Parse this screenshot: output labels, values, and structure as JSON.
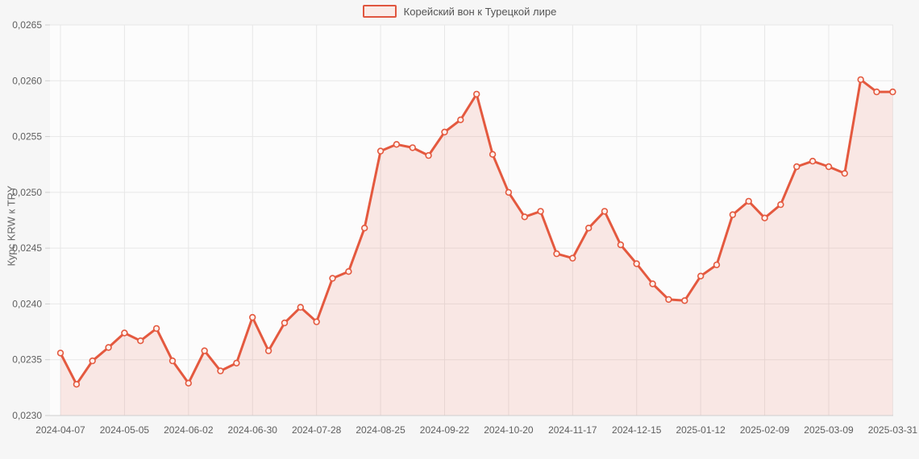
{
  "chart_data": {
    "type": "area",
    "title": "",
    "legend": {
      "position": "top-center",
      "label": "Корейский вон к Турецкой лире"
    },
    "ylabel": "Курс KRW к TRY",
    "xlabel": "",
    "grid": true,
    "ylim": [
      0.023,
      0.0265
    ],
    "ytick_step": 0.0005,
    "ytick_labels": [
      "0,0230",
      "0,0235",
      "0,0240",
      "0,0245",
      "0,0250",
      "0,0255",
      "0,0260",
      "0,0265"
    ],
    "xtick_indices": [
      0,
      4,
      8,
      12,
      16,
      20,
      24,
      28,
      32,
      36,
      40,
      44,
      48,
      52
    ],
    "xtick_labels": [
      "2024-04-07",
      "2024-05-05",
      "2024-06-02",
      "2024-06-30",
      "2024-07-28",
      "2024-08-25",
      "2024-09-22",
      "2024-10-20",
      "2024-11-17",
      "2024-12-15",
      "2025-01-12",
      "2025-02-09",
      "2025-03-09",
      "2025-03-31"
    ],
    "x": [
      "2024-04-07",
      "2024-04-14",
      "2024-04-21",
      "2024-04-28",
      "2024-05-05",
      "2024-05-12",
      "2024-05-19",
      "2024-05-26",
      "2024-06-02",
      "2024-06-09",
      "2024-06-16",
      "2024-06-23",
      "2024-06-30",
      "2024-07-07",
      "2024-07-14",
      "2024-07-21",
      "2024-07-28",
      "2024-08-04",
      "2024-08-11",
      "2024-08-18",
      "2024-08-25",
      "2024-09-01",
      "2024-09-08",
      "2024-09-15",
      "2024-09-22",
      "2024-09-29",
      "2024-10-06",
      "2024-10-13",
      "2024-10-20",
      "2024-10-27",
      "2024-11-03",
      "2024-11-10",
      "2024-11-17",
      "2024-11-24",
      "2024-12-01",
      "2024-12-08",
      "2024-12-15",
      "2024-12-22",
      "2024-12-29",
      "2025-01-05",
      "2025-01-12",
      "2025-01-19",
      "2025-01-26",
      "2025-02-02",
      "2025-02-09",
      "2025-02-16",
      "2025-02-23",
      "2025-03-02",
      "2025-03-09",
      "2025-03-16",
      "2025-03-23",
      "2025-03-30",
      "2025-03-31"
    ],
    "series": [
      {
        "name": "Корейский вон к Турецкой лире",
        "values": [
          0.02356,
          0.02328,
          0.02349,
          0.02361,
          0.02374,
          0.02367,
          0.02378,
          0.02349,
          0.02329,
          0.02358,
          0.0234,
          0.02347,
          0.02388,
          0.02358,
          0.02383,
          0.02397,
          0.02384,
          0.02423,
          0.02429,
          0.02468,
          0.02537,
          0.02543,
          0.0254,
          0.02533,
          0.02554,
          0.02565,
          0.02588,
          0.02534,
          0.025,
          0.02478,
          0.02483,
          0.02445,
          0.02441,
          0.02468,
          0.02483,
          0.02453,
          0.02436,
          0.02418,
          0.02404,
          0.02403,
          0.02425,
          0.02435,
          0.0248,
          0.02492,
          0.02477,
          0.02489,
          0.02523,
          0.02528,
          0.02523,
          0.02517,
          0.02601,
          0.0259,
          0.0259
        ]
      }
    ]
  },
  "colors": {
    "line": "#e4593f",
    "fill_rgba": "rgba(228,90,70,0.13)",
    "marker_fill": "#fdf1ed",
    "page_background": "#f6f6f6",
    "plot_background": "#fcfcfc",
    "grid": "#e7e7e7",
    "axis": "#cfcfcf",
    "tick_text": "#5f5f5f"
  }
}
